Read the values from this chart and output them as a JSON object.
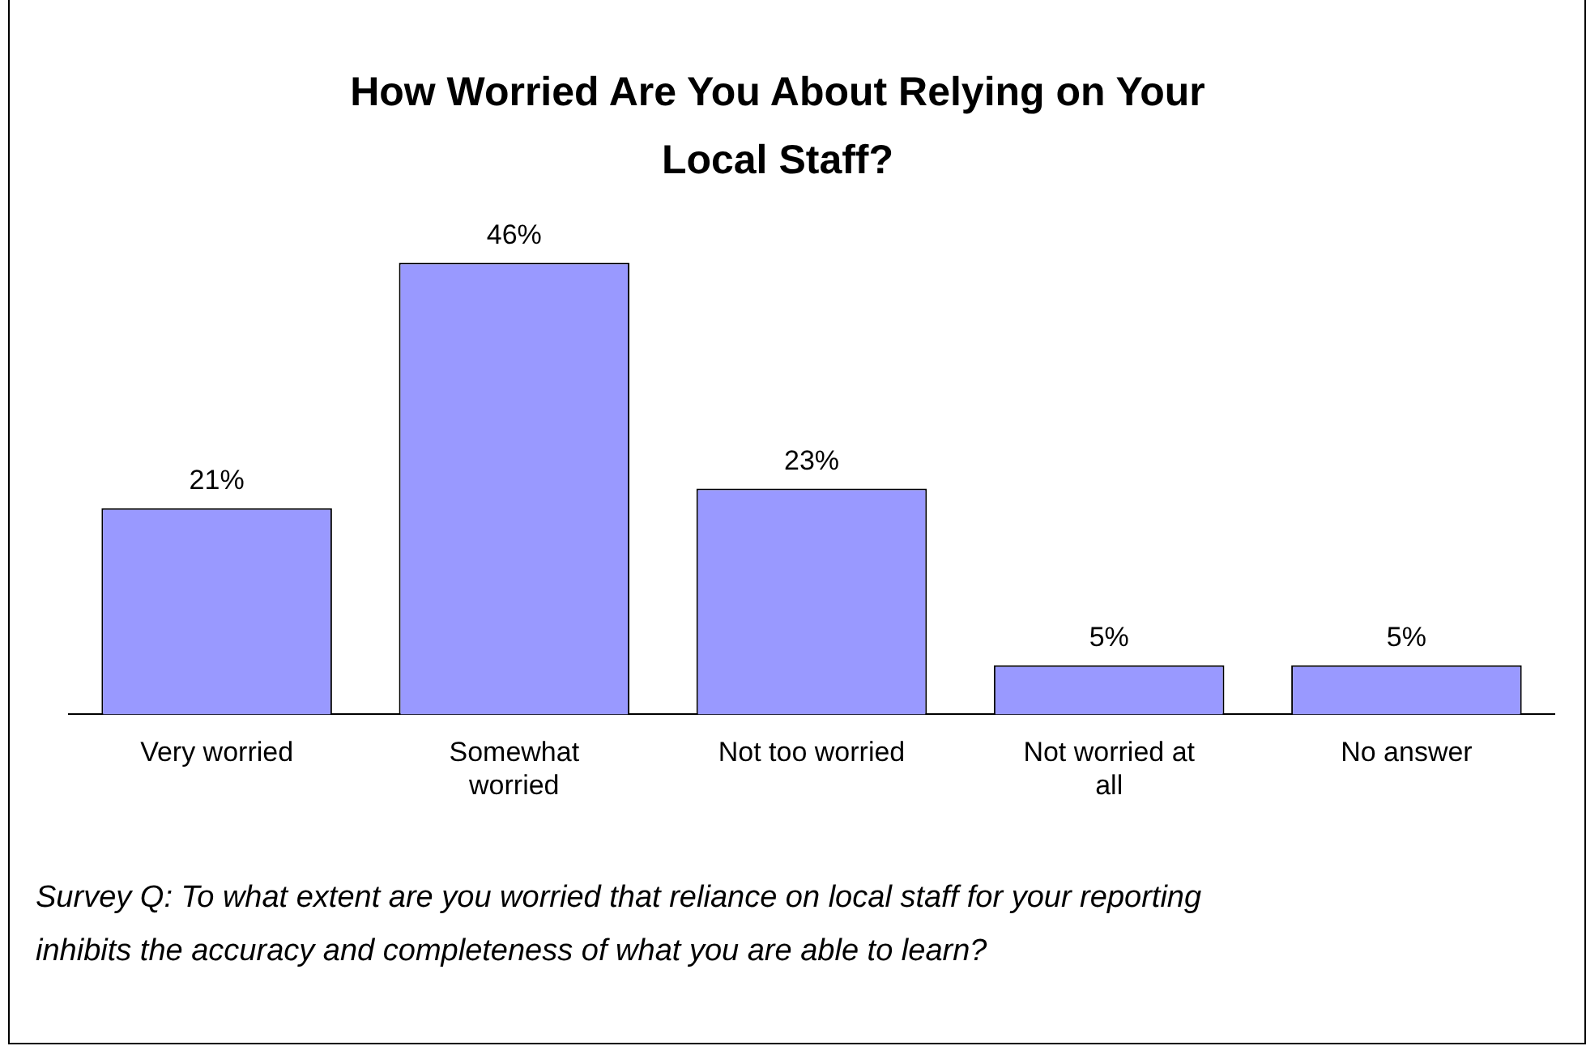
{
  "chart_data": {
    "type": "bar",
    "title": "How Worried Are You About Relying on Your Local Staff?",
    "categories": [
      "Very worried",
      "Somewhat worried",
      "Not too worried",
      "Not worried at all",
      "No answer"
    ],
    "values": [
      21,
      46,
      23,
      5,
      5
    ],
    "value_labels": [
      "21%",
      "46%",
      "23%",
      "5%",
      "5%"
    ],
    "color": "#9999ff",
    "annotations": [
      "Survey Q: To what extent are you worried that reliance on local staff for your reporting inhibits the accuracy and completeness of what you are able to learn?"
    ],
    "grid": false,
    "legend": false
  }
}
